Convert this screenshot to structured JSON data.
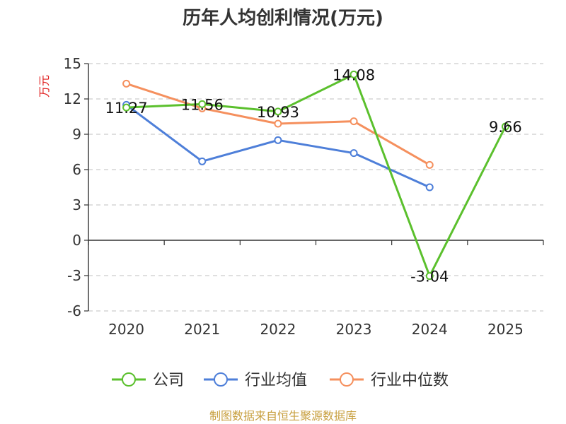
{
  "chart_data": {
    "type": "line",
    "title": "历年人均创利情况(万元)",
    "ylabel": "万元",
    "categories": [
      "2020",
      "2021",
      "2022",
      "2023",
      "2024",
      "2025"
    ],
    "ylim": [
      -6,
      15
    ],
    "yticks": [
      -6,
      -3,
      0,
      3,
      6,
      9,
      12,
      15
    ],
    "grid": true,
    "legend_position": "bottom",
    "series": [
      {
        "name": "公司",
        "color": "#5bc02d",
        "values": [
          11.27,
          11.56,
          10.93,
          14.08,
          -3.04,
          9.66
        ],
        "labels": [
          "11.27",
          "11.56",
          "10.93",
          "14.08",
          "-3.04",
          "9.66"
        ]
      },
      {
        "name": "行业均值",
        "color": "#4e7fd9",
        "values": [
          11.5,
          6.7,
          8.5,
          7.4,
          4.5,
          null
        ]
      },
      {
        "name": "行业中位数",
        "color": "#f5905e",
        "values": [
          13.3,
          11.2,
          9.9,
          10.1,
          6.4,
          null
        ]
      }
    ]
  },
  "footer": {
    "source": "制图数据来自恒生聚源数据库"
  }
}
